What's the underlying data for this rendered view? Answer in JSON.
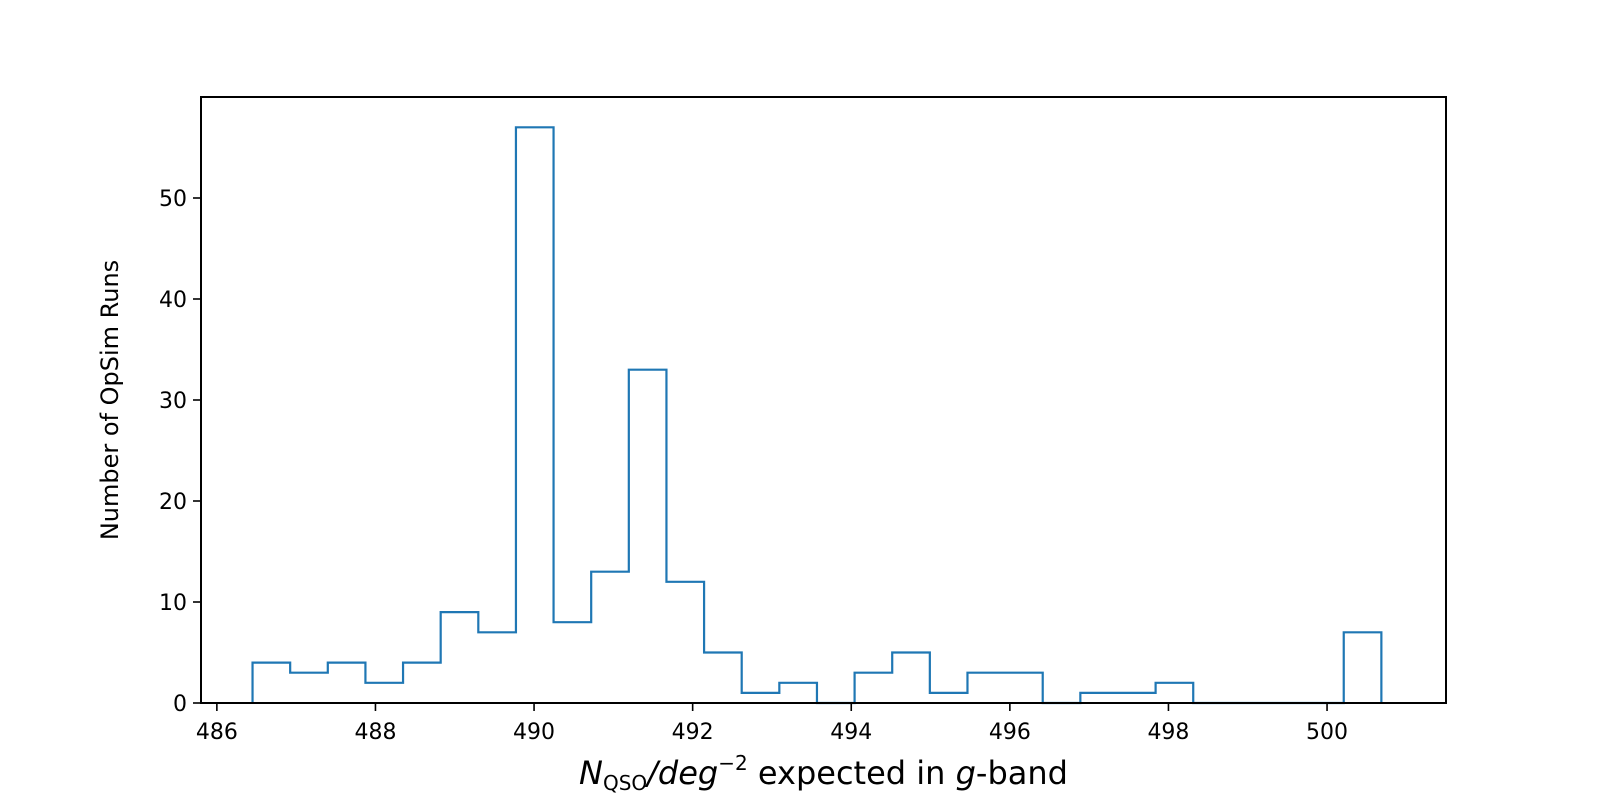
{
  "chart_data": {
    "type": "histogram",
    "xlabel_parts": {
      "var": "N",
      "sub": "QSO",
      "unit": "/deg",
      "exp": "−2",
      "mid": " expected in ",
      "band": "g",
      "suffix": "-band"
    },
    "ylabel": "Number of OpSim Runs",
    "xlim": [
      485.8,
      501.5
    ],
    "ylim": [
      0,
      60
    ],
    "xticks": [
      486,
      488,
      490,
      492,
      494,
      496,
      498,
      500
    ],
    "yticks": [
      0,
      10,
      20,
      30,
      40,
      50
    ],
    "bin_start": 486.45,
    "bin_width": 0.4745,
    "counts": [
      4,
      3,
      4,
      2,
      4,
      9,
      7,
      57,
      8,
      13,
      33,
      12,
      5,
      1,
      2,
      0,
      3,
      5,
      1,
      3,
      3,
      0,
      1,
      1,
      2,
      0,
      0,
      0,
      0,
      7
    ],
    "color": "#1f77b4",
    "grid": false,
    "legend": "none"
  }
}
